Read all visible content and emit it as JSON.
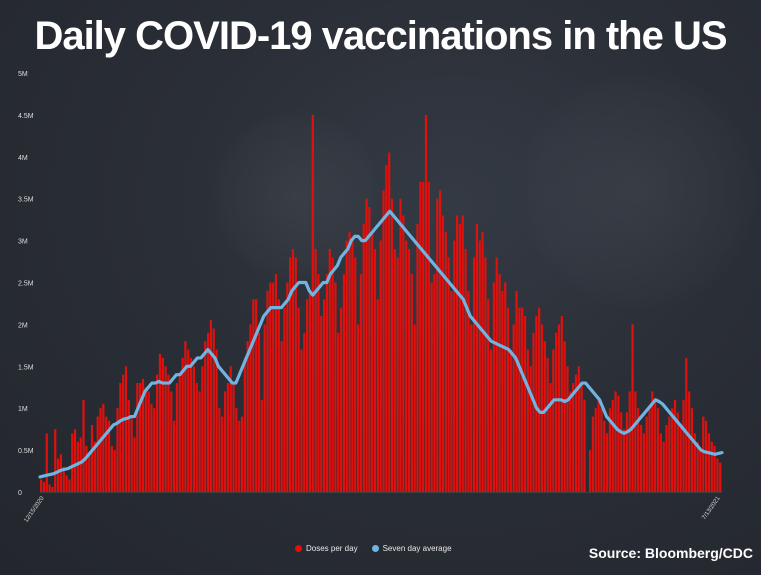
{
  "header": {
    "title": "Daily COVID-19 vaccinations in the US"
  },
  "footer": {
    "source": "Source: Bloomberg/CDC"
  },
  "colors": {
    "bars": "#e0110d",
    "line": "#6fb4e2",
    "axis_text": "#dddddd"
  },
  "chart_data": {
    "type": "bar",
    "title": "Daily COVID-19 vaccinations in the US",
    "xlabel": "",
    "ylabel": "",
    "ylim": [
      0,
      5000000
    ],
    "yticks": [
      {
        "value": 0,
        "label": "0"
      },
      {
        "value": 500000,
        "label": "0.5M"
      },
      {
        "value": 1000000,
        "label": "1M"
      },
      {
        "value": 1500000,
        "label": "1.5M"
      },
      {
        "value": 2000000,
        "label": "2M"
      },
      {
        "value": 2500000,
        "label": "2.5M"
      },
      {
        "value": 3000000,
        "label": "3M"
      },
      {
        "value": 3500000,
        "label": "3.5M"
      },
      {
        "value": 4000000,
        "label": "4M"
      },
      {
        "value": 4500000,
        "label": "4.5M"
      },
      {
        "value": 5000000,
        "label": "5M"
      }
    ],
    "legend": {
      "placement": "bottom-center",
      "entries": [
        "Doses per day",
        "Seven day average"
      ]
    },
    "grid": false,
    "start_label": "12/15/2020",
    "end_label": "7/13/2021",
    "series": [
      {
        "name": "Doses per day",
        "kind": "bar",
        "values": [
          150000,
          120000,
          700000,
          90000,
          60000,
          750000,
          400000,
          450000,
          300000,
          200000,
          150000,
          700000,
          750000,
          600000,
          650000,
          1100000,
          550000,
          450000,
          800000,
          600000,
          900000,
          1000000,
          1050000,
          900000,
          850000,
          550000,
          500000,
          1000000,
          1300000,
          1400000,
          1500000,
          1100000,
          900000,
          650000,
          1300000,
          1300000,
          1350000,
          1250000,
          1200000,
          1050000,
          1000000,
          1400000,
          1650000,
          1600000,
          1500000,
          1400000,
          1200000,
          850000,
          1300000,
          1400000,
          1600000,
          1800000,
          1700000,
          1600000,
          1500000,
          1300000,
          1200000,
          1500000,
          1800000,
          1900000,
          2050000,
          1950000,
          1700000,
          1000000,
          900000,
          1200000,
          1300000,
          1500000,
          1300000,
          1000000,
          850000,
          900000,
          1600000,
          1800000,
          2000000,
          2300000,
          2300000,
          1900000,
          1100000,
          2000000,
          2400000,
          2500000,
          2500000,
          2600000,
          2300000,
          1800000,
          2200000,
          2500000,
          2800000,
          2900000,
          2800000,
          2200000,
          1700000,
          1900000,
          2300000,
          2400000,
          4500000,
          2900000,
          2600000,
          2100000,
          2300000,
          2600000,
          2900000,
          2800000,
          2500000,
          1900000,
          2200000,
          2600000,
          3000000,
          3100000,
          3000000,
          2800000,
          2000000,
          2600000,
          3200000,
          3500000,
          3400000,
          3100000,
          2900000,
          2300000,
          3000000,
          3600000,
          3900000,
          4050000,
          3500000,
          2900000,
          2800000,
          3500000,
          3300000,
          3000000,
          2900000,
          2600000,
          2000000,
          3200000,
          3700000,
          3700000,
          4500000,
          3700000,
          2500000,
          2600000,
          3500000,
          3600000,
          3300000,
          3100000,
          2800000,
          2400000,
          3000000,
          3300000,
          3200000,
          3300000,
          2900000,
          2400000,
          2000000,
          2800000,
          3200000,
          3000000,
          3100000,
          2800000,
          2300000,
          1700000,
          2500000,
          2800000,
          2600000,
          2400000,
          2500000,
          2200000,
          1700000,
          2000000,
          2400000,
          2200000,
          2200000,
          2100000,
          1700000,
          1500000,
          1900000,
          2100000,
          2200000,
          2000000,
          1800000,
          1600000,
          1300000,
          1700000,
          1900000,
          2000000,
          2100000,
          1800000,
          1500000,
          1200000,
          1300000,
          1400000,
          1500000,
          1300000,
          1100000,
          0,
          500000,
          900000,
          1000000,
          1100000,
          1000000,
          850000,
          700000,
          1000000,
          1100000,
          1200000,
          1150000,
          950000,
          750000,
          950000,
          1200000,
          2000000,
          1200000,
          1000000,
          800000,
          700000,
          900000,
          1000000,
          1200000,
          1100000,
          1000000,
          700000,
          600000,
          800000,
          900000,
          1000000,
          1100000,
          950000,
          800000,
          1100000,
          1600000,
          1200000,
          1000000,
          700000,
          600000,
          500000,
          900000,
          850000,
          700000,
          600000,
          550000,
          400000,
          350000
        ]
      },
      {
        "name": "Seven day average",
        "kind": "line",
        "values": [
          180000,
          190000,
          200000,
          210000,
          220000,
          240000,
          260000,
          270000,
          280000,
          300000,
          320000,
          340000,
          360000,
          400000,
          450000,
          500000,
          550000,
          600000,
          650000,
          700000,
          750000,
          800000,
          820000,
          850000,
          870000,
          880000,
          900000,
          900000,
          1000000,
          1100000,
          1200000,
          1250000,
          1300000,
          1300000,
          1320000,
          1300000,
          1300000,
          1300000,
          1350000,
          1400000,
          1400000,
          1450000,
          1500000,
          1500000,
          1550000,
          1600000,
          1600000,
          1650000,
          1700000,
          1650000,
          1600000,
          1500000,
          1450000,
          1400000,
          1350000,
          1300000,
          1300000,
          1400000,
          1500000,
          1600000,
          1700000,
          1800000,
          1900000,
          2000000,
          2100000,
          2150000,
          2200000,
          2200000,
          2200000,
          2200000,
          2250000,
          2300000,
          2400000,
          2450000,
          2500000,
          2500000,
          2500000,
          2400000,
          2350000,
          2400000,
          2450000,
          2500000,
          2500000,
          2600000,
          2650000,
          2700000,
          2800000,
          2850000,
          2900000,
          3000000,
          3050000,
          3050000,
          3000000,
          3000000,
          3050000,
          3100000,
          3150000,
          3200000,
          3250000,
          3300000,
          3350000,
          3300000,
          3250000,
          3200000,
          3150000,
          3100000,
          3050000,
          3000000,
          2950000,
          2900000,
          2850000,
          2800000,
          2750000,
          2700000,
          2650000,
          2600000,
          2550000,
          2500000,
          2450000,
          2400000,
          2350000,
          2300000,
          2200000,
          2100000,
          2050000,
          2000000,
          1950000,
          1900000,
          1850000,
          1800000,
          1780000,
          1760000,
          1740000,
          1720000,
          1700000,
          1650000,
          1600000,
          1500000,
          1400000,
          1300000,
          1200000,
          1100000,
          1000000,
          950000,
          950000,
          1000000,
          1050000,
          1100000,
          1100000,
          1100000,
          1080000,
          1100000,
          1150000,
          1200000,
          1250000,
          1300000,
          1300000,
          1250000,
          1200000,
          1150000,
          1100000,
          1000000,
          900000,
          850000,
          800000,
          750000,
          720000,
          700000,
          720000,
          750000,
          800000,
          850000,
          900000,
          950000,
          1000000,
          1050000,
          1100000,
          1080000,
          1050000,
          1000000,
          950000,
          900000,
          850000,
          800000,
          750000,
          700000,
          650000,
          600000,
          550000,
          500000,
          480000,
          470000,
          460000,
          450000,
          460000,
          470000
        ]
      }
    ]
  }
}
